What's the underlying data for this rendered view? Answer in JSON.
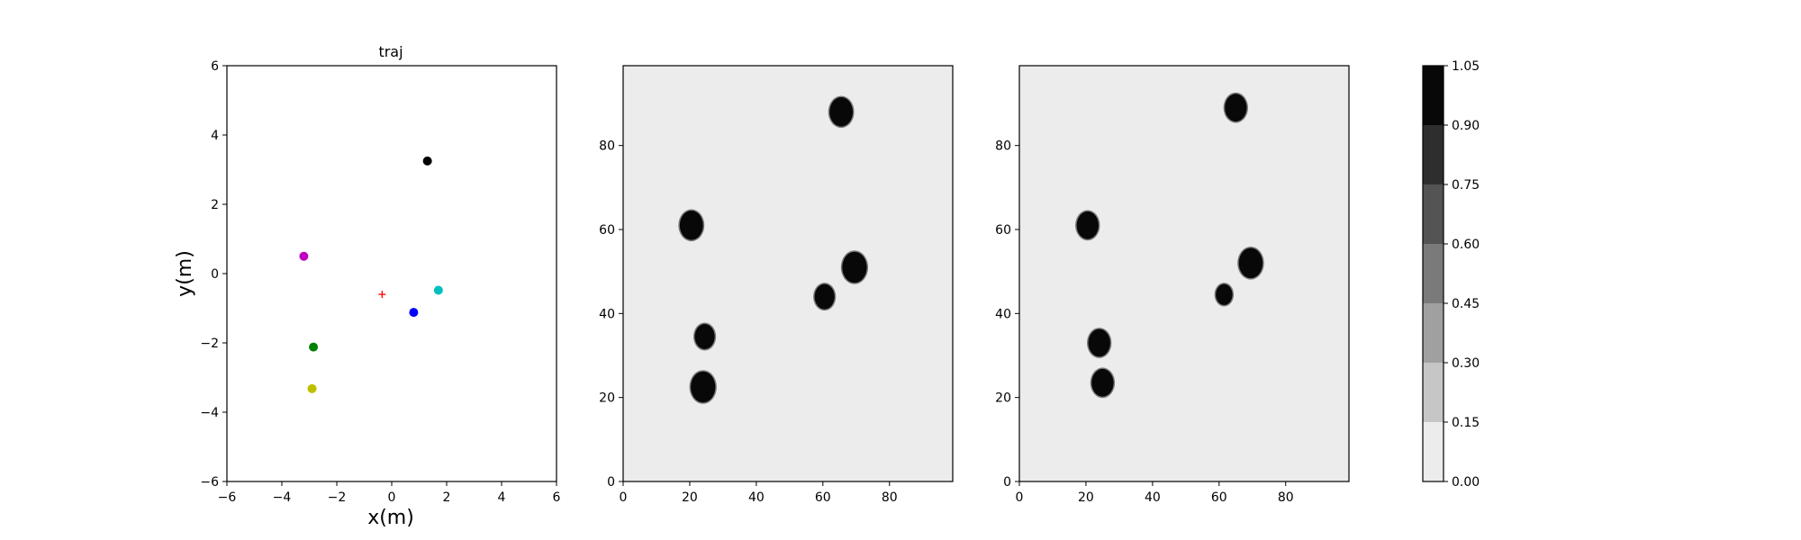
{
  "chart_data": [
    {
      "type": "scatter",
      "title": "traj",
      "xlabel": "x(m)",
      "ylabel": "y(m)",
      "xlim": [
        -6,
        6
      ],
      "ylim": [
        -6,
        6
      ],
      "x_ticks": [
        -6,
        -4,
        -2,
        0,
        2,
        4,
        6
      ],
      "y_ticks": [
        -6,
        -4,
        -2,
        0,
        2,
        4,
        6
      ],
      "grid": false,
      "points": [
        {
          "x": 1.3,
          "y": 3.25,
          "color": "#000000",
          "marker": "circle"
        },
        {
          "x": -3.2,
          "y": 0.5,
          "color": "#bf00bf",
          "marker": "circle"
        },
        {
          "x": 1.7,
          "y": -0.48,
          "color": "#00bfbf",
          "marker": "circle"
        },
        {
          "x": 0.8,
          "y": -1.12,
          "color": "#0000ff",
          "marker": "circle"
        },
        {
          "x": -2.85,
          "y": -2.12,
          "color": "#008000",
          "marker": "circle"
        },
        {
          "x": -2.9,
          "y": -3.32,
          "color": "#bfbf00",
          "marker": "circle"
        }
      ],
      "target": {
        "x": -0.35,
        "y": -0.6,
        "color": "#ff0000",
        "marker": "plus"
      }
    },
    {
      "type": "heatmap",
      "title": "",
      "xlabel": "",
      "ylabel": "",
      "xlim": [
        0,
        99
      ],
      "ylim": [
        0,
        99
      ],
      "x_ticks": [
        0,
        20,
        40,
        60,
        80
      ],
      "y_ticks": [
        0,
        20,
        40,
        60,
        80
      ],
      "background_value": 0.05,
      "blobs": [
        {
          "cx": 65.5,
          "cy": 88,
          "r": 3.5,
          "value": 1.0
        },
        {
          "cx": 20.5,
          "cy": 61,
          "r": 3.5,
          "value": 1.0
        },
        {
          "cx": 69.5,
          "cy": 51,
          "r": 3.7,
          "value": 1.0
        },
        {
          "cx": 60.5,
          "cy": 44,
          "r": 3.0,
          "value": 1.0
        },
        {
          "cx": 24.5,
          "cy": 34.5,
          "r": 3.0,
          "value": 1.0
        },
        {
          "cx": 24,
          "cy": 22.5,
          "r": 3.7,
          "value": 1.0
        }
      ]
    },
    {
      "type": "heatmap",
      "title": "",
      "xlabel": "",
      "ylabel": "",
      "xlim": [
        0,
        99
      ],
      "ylim": [
        0,
        99
      ],
      "x_ticks": [
        0,
        20,
        40,
        60,
        80
      ],
      "y_ticks": [
        0,
        20,
        40,
        60,
        80
      ],
      "background_value": 0.05,
      "blobs": [
        {
          "cx": 65,
          "cy": 89,
          "r": 3.3,
          "value": 1.0
        },
        {
          "cx": 20.5,
          "cy": 61,
          "r": 3.3,
          "value": 1.0
        },
        {
          "cx": 69.5,
          "cy": 52,
          "r": 3.6,
          "value": 1.0
        },
        {
          "cx": 61.5,
          "cy": 44.5,
          "r": 2.5,
          "value": 1.0
        },
        {
          "cx": 24,
          "cy": 33,
          "r": 3.3,
          "value": 1.0
        },
        {
          "cx": 25,
          "cy": 23.5,
          "r": 3.3,
          "value": 1.0
        }
      ]
    }
  ],
  "colorbar": {
    "levels": [
      0.0,
      0.15,
      0.3,
      0.45,
      0.6,
      0.75,
      0.9,
      1.05
    ],
    "tick_labels": [
      "0.00",
      "0.15",
      "0.30",
      "0.45",
      "0.60",
      "0.75",
      "0.90",
      "1.05"
    ],
    "colors": [
      "#ececec",
      "#c6c6c6",
      "#a0a0a0",
      "#7a7a7a",
      "#545454",
      "#2e2e2e",
      "#080808"
    ]
  }
}
